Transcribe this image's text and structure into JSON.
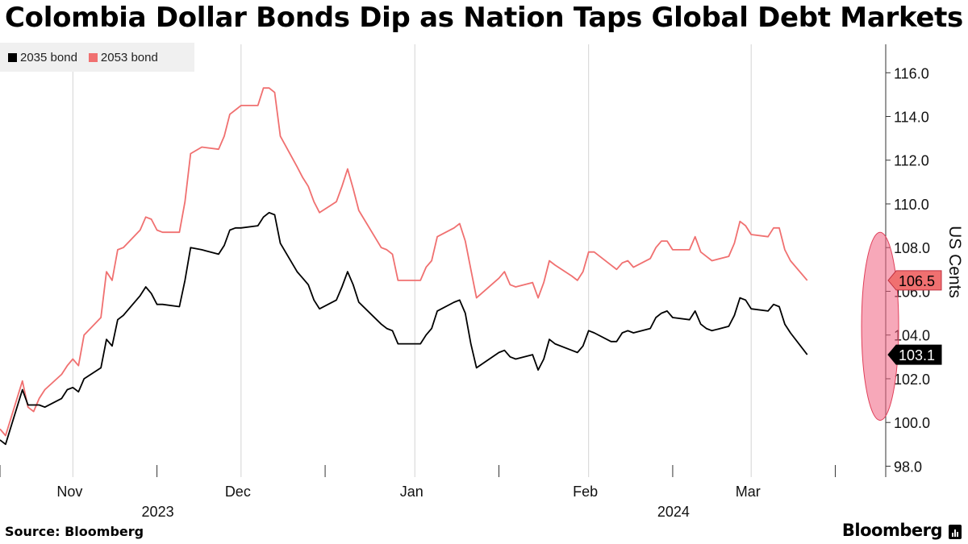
{
  "header": {
    "title": "Colombia Dollar Bonds Dip as Nation Taps Global Debt Markets"
  },
  "footer": {
    "source": "Source: Bloomberg",
    "brand": "Bloomberg"
  },
  "chart_data": {
    "type": "line",
    "title": "Colombia Dollar Bonds Dip as Nation Taps Global Debt Markets",
    "ylabel": "US Cents",
    "xlabel": "",
    "ylim": [
      97.5,
      117.3
    ],
    "y_ticks": [
      98.0,
      100.0,
      102.0,
      104.0,
      106.0,
      108.0,
      110.0,
      112.0,
      114.0,
      116.0
    ],
    "y_tick_labels": [
      "98.0",
      "100.0",
      "102.0",
      "104.0",
      "106.0",
      "108.0",
      "110.0",
      "112.0",
      "114.0",
      "116.0"
    ],
    "x_range": [
      "2023-10-19",
      "2024-03-25"
    ],
    "x_ticks": [
      {
        "label": "Nov",
        "date": "2023-11-01"
      },
      {
        "label": "Dec",
        "date": "2023-12-01"
      },
      {
        "label": "Jan",
        "date": "2024-01-01"
      },
      {
        "label": "Feb",
        "date": "2024-02-01"
      },
      {
        "label": "Mar",
        "date": "2024-03-01"
      }
    ],
    "x_minor_ticks": [
      "2023-10-19",
      "2023-11-16",
      "2023-12-16",
      "2024-01-16",
      "2024-02-16",
      "2024-03-16"
    ],
    "year_labels": [
      {
        "label": "2023",
        "date": "2023-11-16"
      },
      {
        "label": "2024",
        "date": "2024-02-16"
      }
    ],
    "legend_position": "top-left",
    "grid": "vertical month lines",
    "highlight": {
      "type": "ellipse",
      "date": "2024-03-24",
      "y_low": 100.1,
      "y_high": 108.7,
      "color": "#f06080"
    },
    "series": [
      {
        "name": "2035 bond",
        "color": "#000000",
        "last_label": "103.1",
        "points": [
          [
            "2023-10-19",
            99.2
          ],
          [
            "2023-10-20",
            99.0
          ],
          [
            "2023-10-23",
            101.5
          ],
          [
            "2023-10-24",
            100.8
          ],
          [
            "2023-10-25",
            100.8
          ],
          [
            "2023-10-26",
            100.8
          ],
          [
            "2023-10-27",
            100.7
          ],
          [
            "2023-10-30",
            101.1
          ],
          [
            "2023-10-31",
            101.5
          ],
          [
            "2023-11-01",
            101.6
          ],
          [
            "2023-11-02",
            101.4
          ],
          [
            "2023-11-03",
            102.0
          ],
          [
            "2023-11-06",
            102.5
          ],
          [
            "2023-11-07",
            103.8
          ],
          [
            "2023-11-08",
            103.5
          ],
          [
            "2023-11-09",
            104.7
          ],
          [
            "2023-11-10",
            104.9
          ],
          [
            "2023-11-13",
            105.8
          ],
          [
            "2023-11-14",
            106.2
          ],
          [
            "2023-11-15",
            105.9
          ],
          [
            "2023-11-16",
            105.4
          ],
          [
            "2023-11-17",
            105.4
          ],
          [
            "2023-11-20",
            105.3
          ],
          [
            "2023-11-21",
            106.5
          ],
          [
            "2023-11-22",
            108.0
          ],
          [
            "2023-11-24",
            107.9
          ],
          [
            "2023-11-27",
            107.7
          ],
          [
            "2023-11-28",
            108.1
          ],
          [
            "2023-11-29",
            108.8
          ],
          [
            "2023-11-30",
            108.9
          ],
          [
            "2023-12-01",
            108.9
          ],
          [
            "2023-12-04",
            109.0
          ],
          [
            "2023-12-05",
            109.4
          ],
          [
            "2023-12-06",
            109.6
          ],
          [
            "2023-12-07",
            109.5
          ],
          [
            "2023-12-08",
            108.2
          ],
          [
            "2023-12-11",
            106.9
          ],
          [
            "2023-12-12",
            106.6
          ],
          [
            "2023-12-13",
            106.3
          ],
          [
            "2023-12-14",
            105.6
          ],
          [
            "2023-12-15",
            105.2
          ],
          [
            "2023-12-18",
            105.6
          ],
          [
            "2023-12-19",
            106.2
          ],
          [
            "2023-12-20",
            106.9
          ],
          [
            "2023-12-21",
            106.3
          ],
          [
            "2023-12-22",
            105.5
          ],
          [
            "2023-12-26",
            104.5
          ],
          [
            "2023-12-27",
            104.3
          ],
          [
            "2023-12-28",
            104.2
          ],
          [
            "2023-12-29",
            103.6
          ],
          [
            "2024-01-02",
            103.6
          ],
          [
            "2024-01-03",
            104.0
          ],
          [
            "2024-01-04",
            104.3
          ],
          [
            "2024-01-05",
            105.1
          ],
          [
            "2024-01-08",
            105.5
          ],
          [
            "2024-01-09",
            105.6
          ],
          [
            "2024-01-10",
            105.0
          ],
          [
            "2024-01-11",
            103.6
          ],
          [
            "2024-01-12",
            102.5
          ],
          [
            "2024-01-16",
            103.2
          ],
          [
            "2024-01-17",
            103.3
          ],
          [
            "2024-01-18",
            103.0
          ],
          [
            "2024-01-19",
            102.9
          ],
          [
            "2024-01-22",
            103.1
          ],
          [
            "2024-01-23",
            102.4
          ],
          [
            "2024-01-24",
            102.9
          ],
          [
            "2024-01-25",
            103.8
          ],
          [
            "2024-01-26",
            103.6
          ],
          [
            "2024-01-29",
            103.3
          ],
          [
            "2024-01-30",
            103.2
          ],
          [
            "2024-01-31",
            103.5
          ],
          [
            "2024-02-01",
            104.2
          ],
          [
            "2024-02-02",
            104.1
          ],
          [
            "2024-02-05",
            103.7
          ],
          [
            "2024-02-06",
            103.7
          ],
          [
            "2024-02-07",
            104.1
          ],
          [
            "2024-02-08",
            104.2
          ],
          [
            "2024-02-09",
            104.1
          ],
          [
            "2024-02-12",
            104.3
          ],
          [
            "2024-02-13",
            104.8
          ],
          [
            "2024-02-14",
            105.0
          ],
          [
            "2024-02-15",
            105.1
          ],
          [
            "2024-02-16",
            104.8
          ],
          [
            "2024-02-19",
            104.7
          ],
          [
            "2024-02-20",
            105.1
          ],
          [
            "2024-02-21",
            104.5
          ],
          [
            "2024-02-22",
            104.3
          ],
          [
            "2024-02-23",
            104.2
          ],
          [
            "2024-02-26",
            104.4
          ],
          [
            "2024-02-27",
            104.9
          ],
          [
            "2024-02-28",
            105.7
          ],
          [
            "2024-02-29",
            105.6
          ],
          [
            "2024-03-01",
            105.2
          ],
          [
            "2024-03-04",
            105.1
          ],
          [
            "2024-03-05",
            105.4
          ],
          [
            "2024-03-06",
            105.3
          ],
          [
            "2024-03-07",
            104.5
          ],
          [
            "2024-03-08",
            104.1
          ],
          [
            "2024-03-11",
            103.1
          ]
        ]
      },
      {
        "name": "2053 bond",
        "color": "#f07070",
        "last_label": "106.5",
        "points": [
          [
            "2023-10-19",
            99.7
          ],
          [
            "2023-10-20",
            99.4
          ],
          [
            "2023-10-23",
            101.9
          ],
          [
            "2023-10-24",
            100.7
          ],
          [
            "2023-10-25",
            100.5
          ],
          [
            "2023-10-26",
            101.1
          ],
          [
            "2023-10-27",
            101.5
          ],
          [
            "2023-10-30",
            102.2
          ],
          [
            "2023-10-31",
            102.6
          ],
          [
            "2023-11-01",
            102.9
          ],
          [
            "2023-11-02",
            102.6
          ],
          [
            "2023-11-03",
            104.0
          ],
          [
            "2023-11-06",
            104.8
          ],
          [
            "2023-11-07",
            106.9
          ],
          [
            "2023-11-08",
            106.5
          ],
          [
            "2023-11-09",
            107.9
          ],
          [
            "2023-11-10",
            108.0
          ],
          [
            "2023-11-13",
            108.8
          ],
          [
            "2023-11-14",
            109.4
          ],
          [
            "2023-11-15",
            109.3
          ],
          [
            "2023-11-16",
            108.8
          ],
          [
            "2023-11-17",
            108.7
          ],
          [
            "2023-11-20",
            108.7
          ],
          [
            "2023-11-21",
            110.1
          ],
          [
            "2023-11-22",
            112.3
          ],
          [
            "2023-11-24",
            112.6
          ],
          [
            "2023-11-27",
            112.5
          ],
          [
            "2023-11-28",
            113.1
          ],
          [
            "2023-11-29",
            114.1
          ],
          [
            "2023-11-30",
            114.3
          ],
          [
            "2023-12-01",
            114.5
          ],
          [
            "2023-12-04",
            114.5
          ],
          [
            "2023-12-05",
            115.3
          ],
          [
            "2023-12-06",
            115.3
          ],
          [
            "2023-12-07",
            115.1
          ],
          [
            "2023-12-08",
            113.1
          ],
          [
            "2023-12-11",
            111.7
          ],
          [
            "2023-12-12",
            111.2
          ],
          [
            "2023-12-13",
            110.8
          ],
          [
            "2023-12-14",
            110.1
          ],
          [
            "2023-12-15",
            109.6
          ],
          [
            "2023-12-18",
            110.1
          ],
          [
            "2023-12-19",
            110.8
          ],
          [
            "2023-12-20",
            111.6
          ],
          [
            "2023-12-21",
            110.7
          ],
          [
            "2023-12-22",
            109.7
          ],
          [
            "2023-12-26",
            108.0
          ],
          [
            "2023-12-27",
            107.9
          ],
          [
            "2023-12-28",
            107.7
          ],
          [
            "2023-12-29",
            106.5
          ],
          [
            "2024-01-02",
            106.5
          ],
          [
            "2024-01-03",
            107.1
          ],
          [
            "2024-01-04",
            107.4
          ],
          [
            "2024-01-05",
            108.5
          ],
          [
            "2024-01-08",
            108.9
          ],
          [
            "2024-01-09",
            109.1
          ],
          [
            "2024-01-10",
            108.3
          ],
          [
            "2024-01-11",
            107.0
          ],
          [
            "2024-01-12",
            105.7
          ],
          [
            "2024-01-16",
            106.6
          ],
          [
            "2024-01-17",
            106.9
          ],
          [
            "2024-01-18",
            106.3
          ],
          [
            "2024-01-19",
            106.2
          ],
          [
            "2024-01-22",
            106.4
          ],
          [
            "2024-01-23",
            105.7
          ],
          [
            "2024-01-24",
            106.4
          ],
          [
            "2024-01-25",
            107.4
          ],
          [
            "2024-01-26",
            107.2
          ],
          [
            "2024-01-29",
            106.7
          ],
          [
            "2024-01-30",
            106.5
          ],
          [
            "2024-01-31",
            106.9
          ],
          [
            "2024-02-01",
            107.8
          ],
          [
            "2024-02-02",
            107.8
          ],
          [
            "2024-02-05",
            107.2
          ],
          [
            "2024-02-06",
            107.0
          ],
          [
            "2024-02-07",
            107.3
          ],
          [
            "2024-02-08",
            107.4
          ],
          [
            "2024-02-09",
            107.1
          ],
          [
            "2024-02-12",
            107.5
          ],
          [
            "2024-02-13",
            108.0
          ],
          [
            "2024-02-14",
            108.3
          ],
          [
            "2024-02-15",
            108.3
          ],
          [
            "2024-02-16",
            107.9
          ],
          [
            "2024-02-19",
            107.9
          ],
          [
            "2024-02-20",
            108.5
          ],
          [
            "2024-02-21",
            107.8
          ],
          [
            "2024-02-22",
            107.6
          ],
          [
            "2024-02-23",
            107.4
          ],
          [
            "2024-02-26",
            107.6
          ],
          [
            "2024-02-27",
            108.2
          ],
          [
            "2024-02-28",
            109.2
          ],
          [
            "2024-02-29",
            109.0
          ],
          [
            "2024-03-01",
            108.6
          ],
          [
            "2024-03-04",
            108.5
          ],
          [
            "2024-03-05",
            108.9
          ],
          [
            "2024-03-06",
            108.9
          ],
          [
            "2024-03-07",
            107.9
          ],
          [
            "2024-03-08",
            107.4
          ],
          [
            "2024-03-11",
            106.5
          ]
        ]
      }
    ]
  }
}
